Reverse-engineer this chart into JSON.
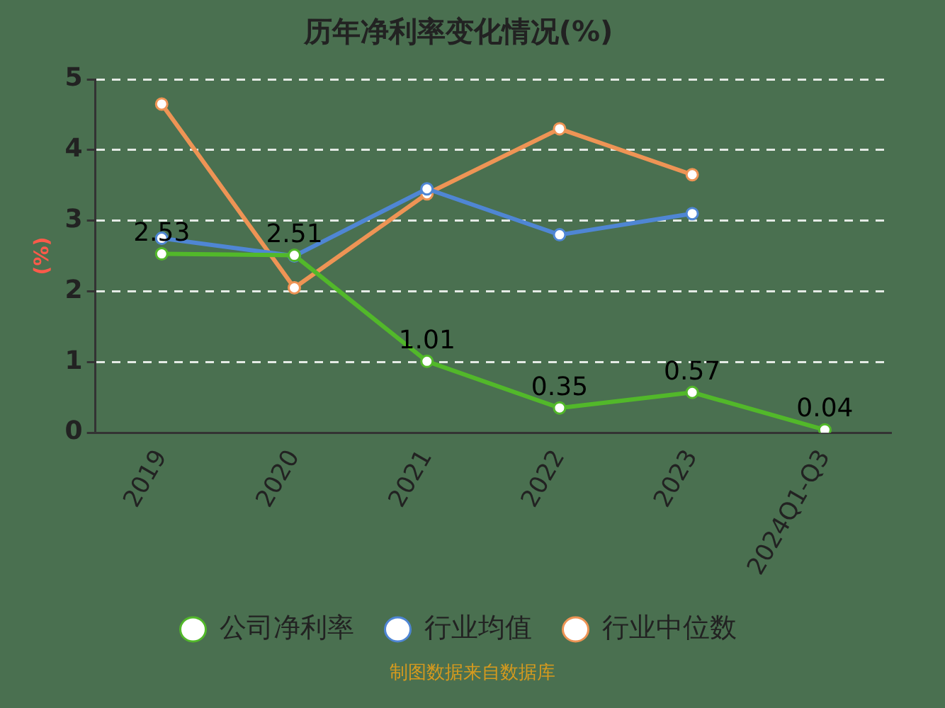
{
  "chart_data": {
    "type": "line",
    "title": "历年净利率变化情况(%)",
    "ylabel": "(%)",
    "categories": [
      "2019",
      "2020",
      "2021",
      "2022",
      "2023",
      "2024Q1-Q3"
    ],
    "series": [
      {
        "name": "公司净利率",
        "color": "#52b82a",
        "values": [
          2.53,
          2.51,
          1.01,
          0.35,
          0.57,
          0.04
        ],
        "value_labels": [
          "2.53",
          "2.51",
          "1.01",
          "0.35",
          "0.57",
          "0.04"
        ]
      },
      {
        "name": "行业均值",
        "color": "#4f86d4",
        "values": [
          2.75,
          2.5,
          3.45,
          2.8,
          3.1,
          null
        ]
      },
      {
        "name": "行业中位数",
        "color": "#ee9455",
        "values": [
          4.65,
          2.05,
          3.38,
          4.3,
          3.65,
          null
        ]
      }
    ],
    "ylim": [
      0,
      5
    ],
    "yticks": [
      0,
      1,
      2,
      3,
      4,
      5
    ],
    "grid": "y",
    "legend": "bottom",
    "marker": "circle",
    "line_style": "solid",
    "annotations": [
      "制图数据来自数据库"
    ]
  }
}
